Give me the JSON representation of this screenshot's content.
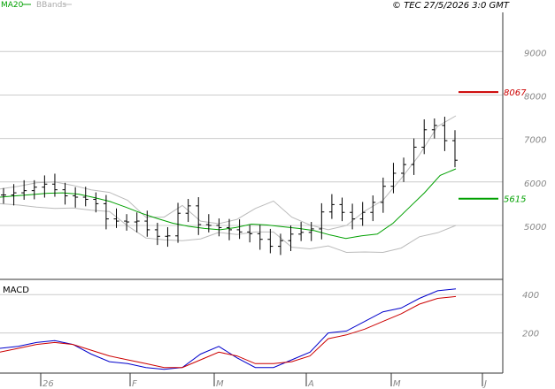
{
  "header": {
    "legend_ma": "MA20",
    "legend_bbands": "BBands",
    "copyright": "© TEC 27/5/2026 3:0 GMT"
  },
  "colors": {
    "ma": "#00a000",
    "bbands": "#bbbbbb",
    "price": "#000000",
    "resistance": "#cc0000",
    "support": "#00a000",
    "macd": "#0000cc",
    "signal": "#cc0000",
    "grid": "#cccccc"
  },
  "chart_data": [
    {
      "type": "ohlc",
      "title": "",
      "x_tick_labels": [
        "26",
        "F",
        "M",
        "A",
        "M",
        "J"
      ],
      "y_tick_labels": [
        9000,
        8000,
        7000,
        6000,
        5000
      ],
      "ylim": [
        3800,
        9900
      ],
      "grid": true,
      "legend": "top-left",
      "series": [
        {
          "name": "MA20",
          "values": [
            5650,
            5680,
            5710,
            5740,
            5750,
            5720,
            5640,
            5550,
            5420,
            5280,
            5160,
            5050,
            4980,
            4930,
            4900,
            4950,
            5030,
            5010,
            4970,
            4930,
            4880,
            4780,
            4700,
            4760,
            4800,
            5050,
            5400,
            5750,
            6150,
            6300
          ]
        },
        {
          "name": "BBands",
          "upper": [
            5840,
            5900,
            5980,
            6000,
            5920,
            5820,
            5760,
            5580,
            5190,
            5190,
            5460,
            5100,
            5040,
            5140,
            5390,
            5560,
            5190,
            5010,
            4900,
            5000,
            5330,
            5580,
            6080,
            6620,
            7280,
            7520
          ],
          "lower": [
            5500,
            5470,
            5420,
            5390,
            5400,
            5350,
            5320,
            4990,
            4710,
            4670,
            4650,
            4690,
            4840,
            4790,
            4850,
            4850,
            4500,
            4460,
            4530,
            4380,
            4390,
            4380,
            4480,
            4740,
            4830,
            5000
          ]
        }
      ],
      "close": [
        5700,
        5750,
        5800,
        5880,
        5950,
        5820,
        5680,
        5650,
        5600,
        5500,
        5150,
        5100,
        5080,
        5100,
        4900,
        4750,
        4760,
        5280,
        5450,
        5020,
        5000,
        4950,
        4900,
        4850,
        4810,
        4680,
        4520,
        4650,
        4800,
        4840,
        4920,
        5310,
        5480,
        5300,
        5150,
        5300,
        5530,
        5900,
        6200,
        6400,
        6800,
        7200,
        7300,
        6950,
        6500
      ],
      "annotations": [
        {
          "label": "8067",
          "value": 8067,
          "color": "#cc0000"
        },
        {
          "label": "5615",
          "value": 5615,
          "color": "#00a000"
        }
      ]
    },
    {
      "type": "line",
      "title": "MACD",
      "y_tick_labels": [
        400,
        200
      ],
      "ylim": [
        0,
        470
      ],
      "grid": true,
      "series": [
        {
          "name": "MACD",
          "values": [
            120,
            130,
            150,
            160,
            140,
            90,
            50,
            40,
            20,
            10,
            20,
            90,
            130,
            70,
            20,
            20,
            60,
            100,
            200,
            210,
            260,
            310,
            330,
            380,
            420,
            430
          ]
        },
        {
          "name": "",
          "values": [
            100,
            120,
            140,
            150,
            140,
            110,
            80,
            60,
            40,
            20,
            20,
            60,
            100,
            80,
            40,
            40,
            50,
            80,
            170,
            190,
            220,
            260,
            300,
            350,
            380,
            390
          ]
        }
      ]
    }
  ]
}
